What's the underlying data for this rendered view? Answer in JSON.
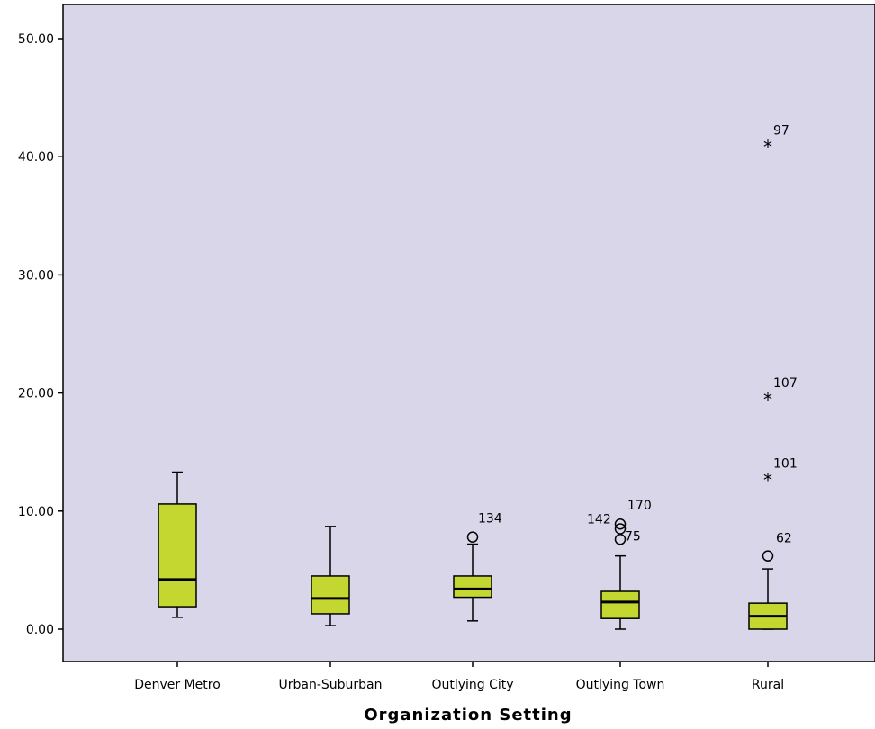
{
  "chart_data": {
    "type": "boxplot",
    "title": "",
    "xlabel": "Organization Setting",
    "ylabel": "",
    "ylim": [
      -3,
      53
    ],
    "yticks": [
      0,
      10,
      20,
      30,
      40,
      50
    ],
    "ytick_labels": [
      "0.00",
      "10.00",
      "20.00",
      "30.00",
      "40.00",
      "50.00"
    ],
    "plot_background": "#dad6ea",
    "box_color": "#c3d730",
    "grid": false,
    "categories": [
      "Denver Metro",
      "Urban-Suburban",
      "Outlying City",
      "Outlying Town",
      "Rural"
    ],
    "boxes": [
      {
        "category": "Denver Metro",
        "whisker_low": 1.0,
        "q1": 1.9,
        "median": 4.2,
        "q3": 10.6,
        "whisker_high": 13.3,
        "outliers": []
      },
      {
        "category": "Urban-Suburban",
        "whisker_low": 0.3,
        "q1": 1.3,
        "median": 2.6,
        "q3": 4.5,
        "whisker_high": 8.7,
        "outliers": []
      },
      {
        "category": "Outlying City",
        "whisker_low": 0.7,
        "q1": 2.7,
        "median": 3.4,
        "q3": 4.5,
        "whisker_high": 7.2,
        "outliers": [
          {
            "value": 7.8,
            "marker": "circle",
            "label": "134"
          }
        ]
      },
      {
        "category": "Outlying Town",
        "whisker_low": 0.0,
        "q1": 0.9,
        "median": 2.3,
        "q3": 3.2,
        "whisker_high": 6.2,
        "outliers": [
          {
            "value": 7.6,
            "marker": "circle",
            "label": "75"
          },
          {
            "value": 8.5,
            "marker": "circle",
            "label": "142"
          },
          {
            "value": 8.9,
            "marker": "circle",
            "label": "170"
          }
        ]
      },
      {
        "category": "Rural",
        "whisker_low": 0.0,
        "q1": 0.0,
        "median": 1.1,
        "q3": 2.2,
        "whisker_high": 5.1,
        "outliers": [
          {
            "value": 6.2,
            "marker": "circle",
            "label": "62"
          },
          {
            "value": 12.7,
            "marker": "star",
            "label": "101"
          },
          {
            "value": 19.5,
            "marker": "star",
            "label": "107"
          },
          {
            "value": 40.9,
            "marker": "star",
            "label": "97"
          }
        ]
      }
    ]
  }
}
